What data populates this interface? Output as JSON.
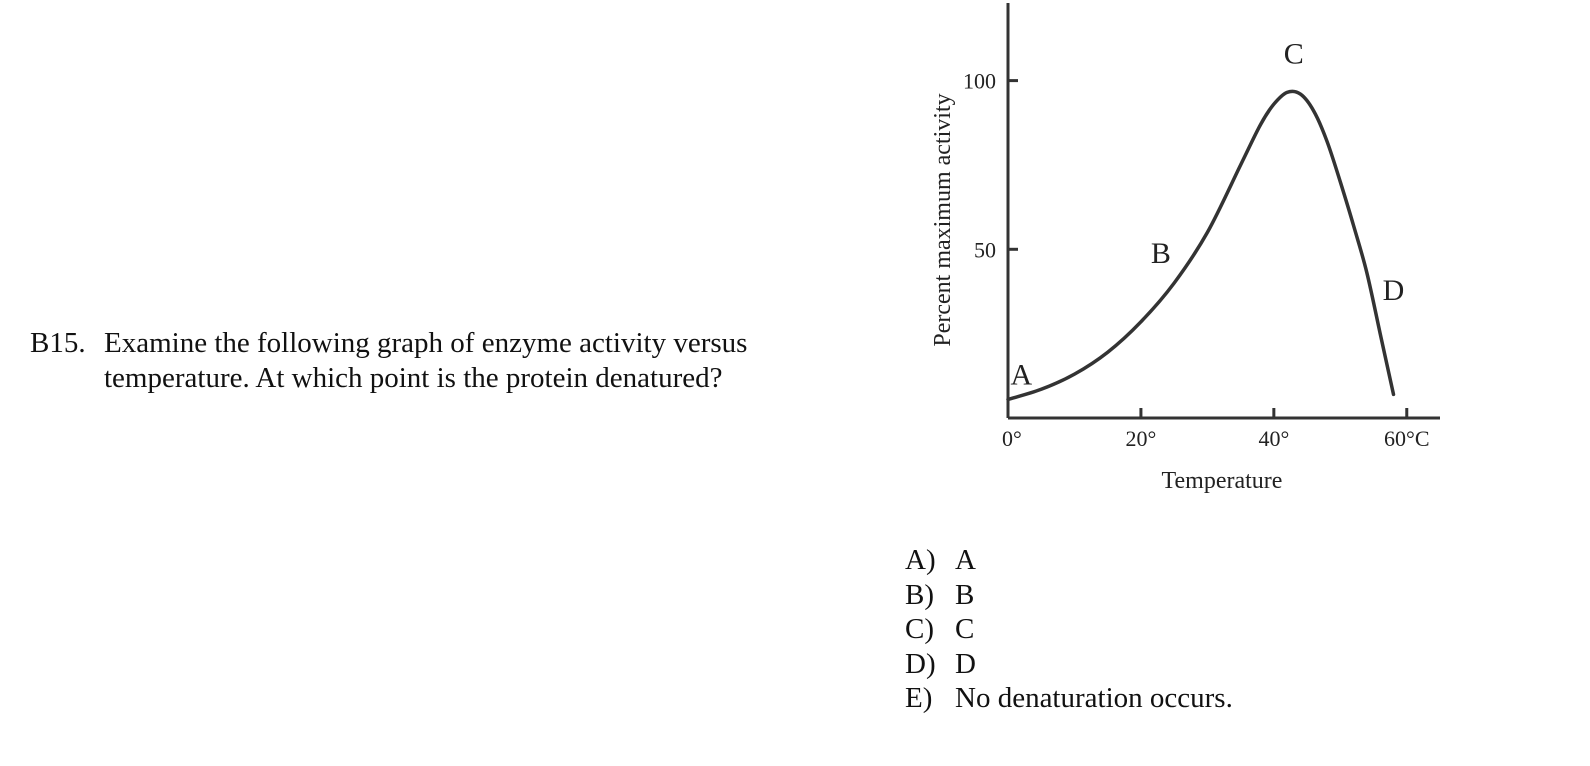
{
  "question": {
    "number": "B15.",
    "text": "Examine the following graph of enzyme activity versus temperature.  At which point is the protein denatured?"
  },
  "answers": [
    {
      "letter": "A)",
      "text": "A"
    },
    {
      "letter": "B)",
      "text": "B"
    },
    {
      "letter": "C)",
      "text": "C"
    },
    {
      "letter": "D)",
      "text": "D"
    },
    {
      "letter": "E)",
      "text": "No denaturation occurs."
    }
  ],
  "chart_data": {
    "type": "line",
    "title": "",
    "xlabel": "Temperature",
    "ylabel": "Percent maximum activity",
    "xlim": [
      0,
      65
    ],
    "ylim": [
      0,
      123
    ],
    "x_ticks": [
      {
        "value": 0,
        "label": "0°"
      },
      {
        "value": 20,
        "label": "20°"
      },
      {
        "value": 40,
        "label": "40°"
      },
      {
        "value": 60,
        "label": "60°C"
      }
    ],
    "y_ticks": [
      {
        "value": 50,
        "label": "50"
      },
      {
        "value": 100,
        "label": "100"
      }
    ],
    "grid": false,
    "series": [
      {
        "x": [
          0,
          5,
          10,
          15,
          20,
          25,
          30,
          35,
          38,
          40,
          42,
          44,
          46,
          48,
          50,
          52,
          54,
          56,
          58
        ],
        "y": [
          5.5,
          8.5,
          13,
          19.5,
          28.5,
          40,
          55,
          75,
          87,
          93,
          96.5,
          96,
          91,
          82,
          70,
          57,
          43,
          25,
          7
        ]
      }
    ],
    "annotations": [
      {
        "label": "A",
        "x": 2,
        "y": 10
      },
      {
        "label": "B",
        "x": 23,
        "y": 46
      },
      {
        "label": "C",
        "x": 43,
        "y": 105
      },
      {
        "label": "D",
        "x": 58,
        "y": 35
      }
    ],
    "line_color": "#333333"
  }
}
